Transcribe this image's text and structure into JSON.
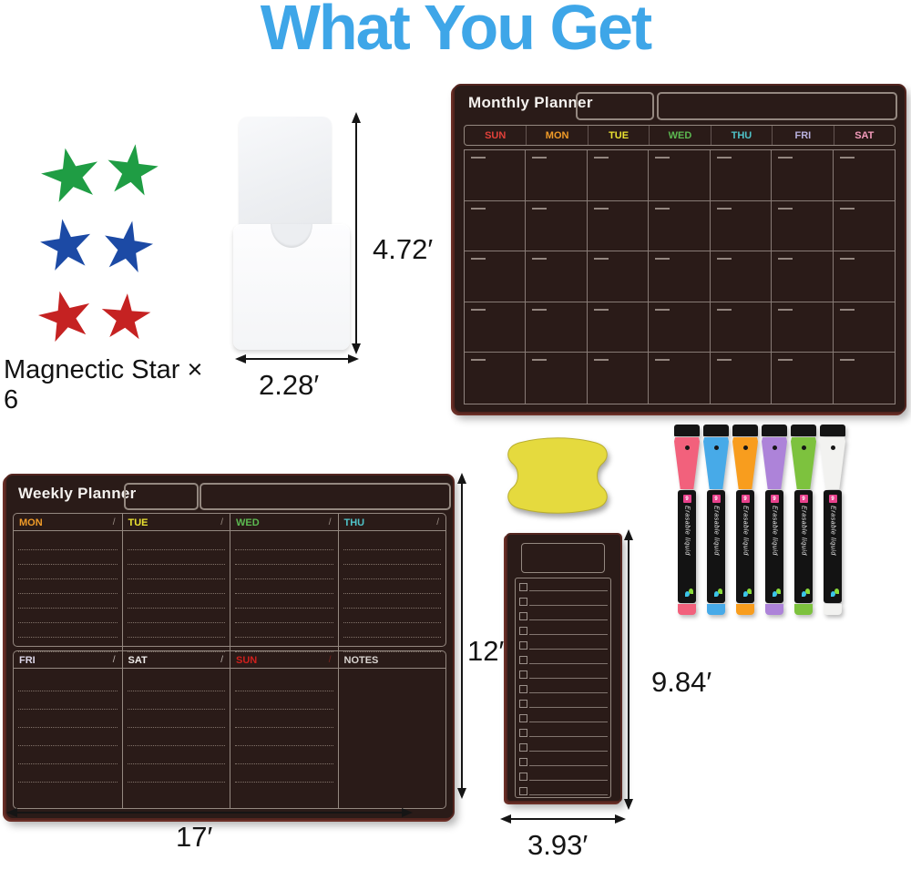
{
  "title": "What You Get",
  "title_color": "#3ea6e8",
  "magnets": {
    "label": "Magnectic Star × 6",
    "star_colors": [
      "#1f9d44",
      "#1f9d44",
      "#1c4aa5",
      "#1c4aa5",
      "#c52222",
      "#c52222"
    ]
  },
  "holder": {
    "height_label": "4.72′",
    "width_label": "2.28′"
  },
  "monthly": {
    "title": "Monthly Planner",
    "rows": 5,
    "cols": 7,
    "days": [
      {
        "label": "SUN",
        "color": "#e2413a"
      },
      {
        "label": "MON",
        "color": "#f09b28"
      },
      {
        "label": "TUE",
        "color": "#eae231"
      },
      {
        "label": "WED",
        "color": "#5cb951"
      },
      {
        "label": "THU",
        "color": "#4fc3c9"
      },
      {
        "label": "FRI",
        "color": "#b9b1de"
      },
      {
        "label": "SAT",
        "color": "#f59cbc"
      }
    ]
  },
  "weekly": {
    "title": "Weekly Planner",
    "slash": "/",
    "height_label": "12′",
    "width_label": "17′",
    "top_line_count": 8,
    "bottom_line_count": 6,
    "top_days": [
      {
        "label": "MON",
        "color": "#f09b28",
        "slash_color": "#9a8d85"
      },
      {
        "label": "TUE",
        "color": "#eae231",
        "slash_color": "#9a8d85"
      },
      {
        "label": "WED",
        "color": "#5cb951",
        "slash_color": "#9a8d85"
      },
      {
        "label": "THU",
        "color": "#4fc3c9",
        "slash_color": "#9a8d85"
      }
    ],
    "bottom_days": [
      {
        "label": "FRI",
        "color": "#ddd8ea",
        "slash_color": "#c1b9b3",
        "lines": true
      },
      {
        "label": "SAT",
        "color": "#efecea",
        "slash_color": "#c1b9b3",
        "lines": true
      },
      {
        "label": "SUN",
        "color": "#cf201d",
        "slash_color": "#7c221c",
        "lines": true
      },
      {
        "label": "NOTES",
        "color": "#d9d4d0",
        "slash": false,
        "lines": false
      }
    ]
  },
  "list_board": {
    "rows": 15,
    "height_label": "9.84′",
    "width_label": "3.93′"
  },
  "eraser": {
    "color": "#e5da3e"
  },
  "markers": {
    "body_text": "Erasable liquid",
    "logo_glyph": "9",
    "colors": [
      "#f2617c",
      "#47aae8",
      "#f89d1e",
      "#ad83d9",
      "#7dc23e",
      "#f2f2f0"
    ]
  }
}
